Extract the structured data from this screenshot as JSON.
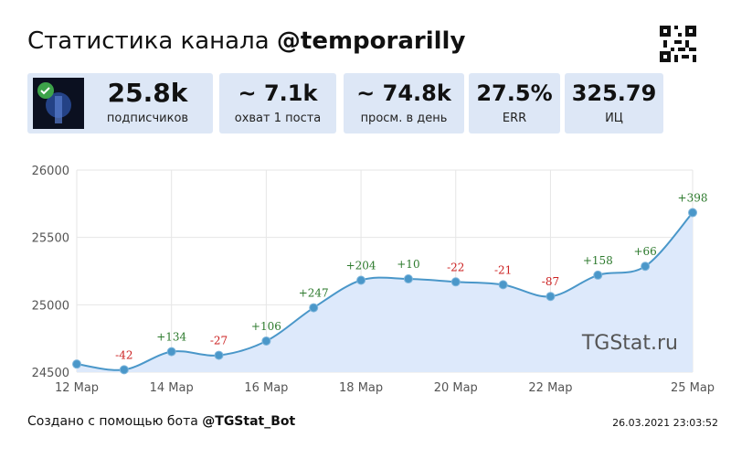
{
  "header": {
    "title_prefix": "Статистика канала ",
    "channel": "@temporarilly"
  },
  "stats": [
    {
      "value": "25.8k",
      "label": "подписчиков"
    },
    {
      "value": "~ 7.1k",
      "label": "охват 1 поста"
    },
    {
      "value": "~ 74.8k",
      "label": "просм. в день"
    },
    {
      "value": "27.5%",
      "label": "ERR"
    },
    {
      "value": "325.79",
      "label": "ИЦ"
    }
  ],
  "colors": {
    "line": "#4a97c9",
    "fill": "#dde9fb",
    "positive": "#2d7a2d",
    "negative": "#cc2222",
    "card": "#dde7f6"
  },
  "chart_data": {
    "type": "area",
    "title": "",
    "xlabel": "",
    "ylabel": "",
    "x": [
      "12 Мар",
      "13 Мар",
      "14 Мар",
      "15 Мар",
      "16 Мар",
      "17 Мар",
      "18 Мар",
      "19 Мар",
      "20 Мар",
      "21 Мар",
      "22 Мар",
      "23 Мар",
      "24 Мар",
      "25 Мар"
    ],
    "x_tick_labels": [
      "12 Мар",
      "14 Мар",
      "16 Мар",
      "18 Мар",
      "20 Мар",
      "22 Мар",
      "25 Мар"
    ],
    "x_tick_positions": [
      0,
      2,
      4,
      6,
      8,
      10,
      13
    ],
    "series": [
      {
        "values": [
          24560,
          24518,
          24652,
          24625,
          24731,
          24978,
          25182,
          25192,
          25170,
          25149,
          25062,
          25220,
          25286,
          25684
        ],
        "labels": [
          "",
          "-42",
          "+134",
          "-27",
          "+106",
          "+247",
          "+204",
          "+10",
          "-22",
          "-21",
          "-87",
          "+158",
          "+66",
          "+398"
        ]
      }
    ],
    "ylim": [
      24500,
      26000
    ],
    "y_ticks": [
      24500,
      25000,
      25500,
      26000
    ],
    "grid": true,
    "watermark": "TGStat.ru"
  },
  "footer": {
    "prefix": "Создано с помощью бота ",
    "bot": "@TGStat_Bot",
    "timestamp": "26.03.2021 23:03:52"
  }
}
